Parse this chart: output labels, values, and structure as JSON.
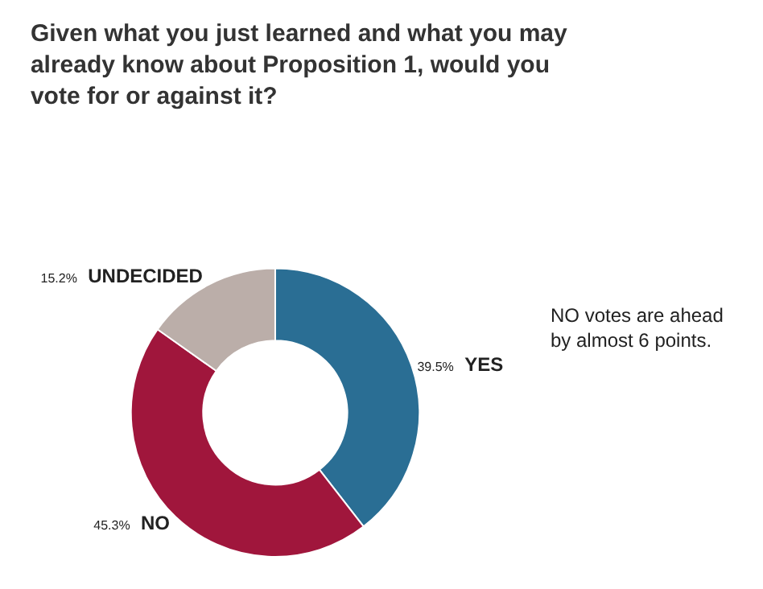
{
  "chart_data": {
    "type": "donut",
    "title": "Given what you just learned and what you may already know about Proposition 1, would you vote for or against it?",
    "categories": [
      "YES",
      "NO",
      "UNDECIDED"
    ],
    "values": [
      39.5,
      45.3,
      15.2
    ],
    "value_labels": [
      "39.5%",
      "45.3%",
      "15.2%"
    ],
    "colors": [
      "#2a6e94",
      "#a0163c",
      "#bbaea9"
    ],
    "legend": false,
    "annotations": [
      "NO votes are ahead by almost 6 points."
    ]
  }
}
